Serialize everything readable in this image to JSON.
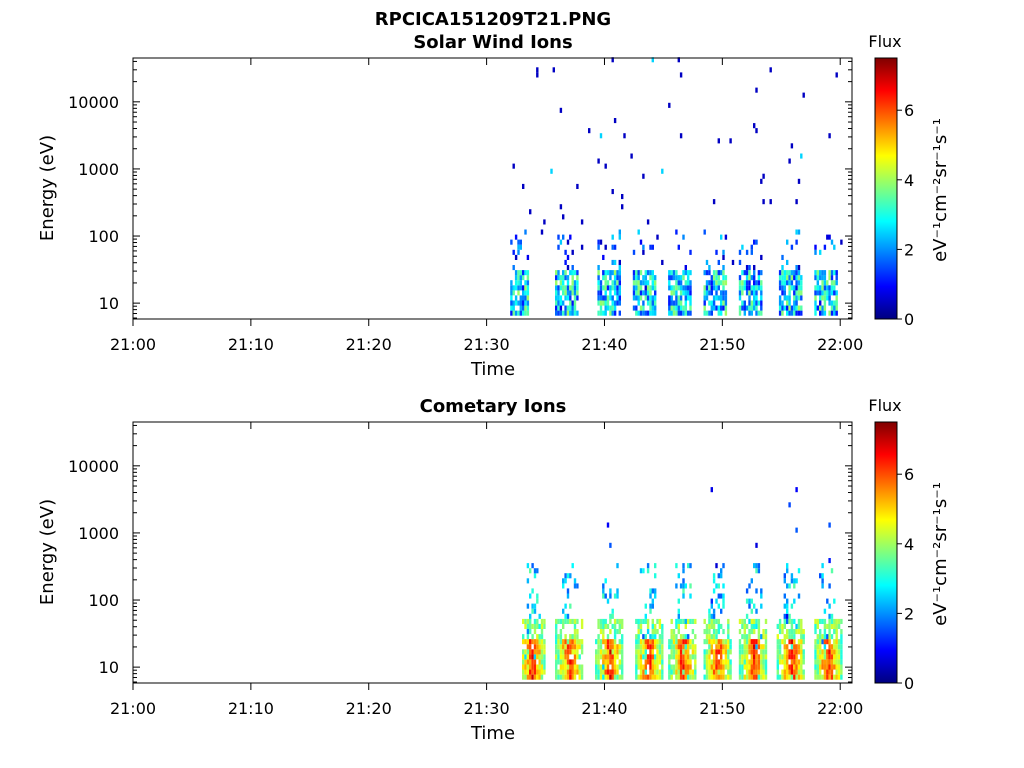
{
  "figure_title": "RPCICA151209T21.PNG",
  "colors": {
    "colormap": [
      "#00007f",
      "#0000ff",
      "#007fff",
      "#00ffff",
      "#7fff7f",
      "#ffff00",
      "#ff7f00",
      "#ff0000",
      "#7f0000"
    ]
  },
  "chart_data": [
    {
      "type": "heatmap",
      "title": "Solar Wind Ions",
      "xlabel": "Time",
      "ylabel": "Energy (eV)",
      "x_ticks": [
        "21:00",
        "21:10",
        "21:20",
        "21:30",
        "21:40",
        "21:50",
        "22:00"
      ],
      "x_range_minutes": [
        0,
        61
      ],
      "y_scale": "log",
      "y_range": [
        5.8,
        45000
      ],
      "y_ticks": [
        "10",
        "100",
        "1000",
        "10000"
      ],
      "colorbar": {
        "title": "Flux",
        "label": "eV⁻¹cm⁻²sr⁻¹s⁻¹",
        "ticks": [
          "0",
          "2",
          "4",
          "6"
        ],
        "range": [
          0,
          7.5
        ]
      },
      "grid": false,
      "data_start_minute": 32,
      "bursts_minutes": [
        32.5,
        36.8,
        40.3,
        43.4,
        46.3,
        49.3,
        52.3,
        55.7,
        58.7
      ],
      "description_points": [
        {
          "t": 32.5,
          "e": 10,
          "flux": 1.5
        },
        {
          "t": 36.8,
          "e": 10,
          "flux": 3.0
        },
        {
          "t": 40.3,
          "e": 10,
          "flux": 3.0
        },
        {
          "t": 43.4,
          "e": 12,
          "flux": 3.5
        },
        {
          "t": 46.3,
          "e": 10,
          "flux": 3.0
        },
        {
          "t": 49.3,
          "e": 10,
          "flux": 3.0
        },
        {
          "t": 52.3,
          "e": 10,
          "flux": 2.5
        },
        {
          "t": 55.7,
          "e": 10,
          "flux": 2.5
        },
        {
          "t": 58.7,
          "e": 10,
          "flux": 2.5
        }
      ]
    },
    {
      "type": "heatmap",
      "title": "Cometary Ions",
      "xlabel": "Time",
      "ylabel": "Energy (eV)",
      "x_ticks": [
        "21:00",
        "21:10",
        "21:20",
        "21:30",
        "21:40",
        "21:50",
        "22:00"
      ],
      "x_range_minutes": [
        0,
        61
      ],
      "y_scale": "log",
      "y_range": [
        5.8,
        45000
      ],
      "y_ticks": [
        "10",
        "100",
        "1000",
        "10000"
      ],
      "colorbar": {
        "title": "Flux",
        "label": "eV⁻¹cm⁻²sr⁻¹s⁻¹",
        "ticks": [
          "0",
          "2",
          "4",
          "6"
        ],
        "range": [
          0,
          7.5
        ]
      },
      "grid": false,
      "data_start_minute": 33,
      "bursts_minutes": [
        33.8,
        37.0,
        40.4,
        43.7,
        46.6,
        49.5,
        52.6,
        55.8,
        58.9
      ],
      "description_points": [
        {
          "t": 33.8,
          "e": 10,
          "flux": 5.5
        },
        {
          "t": 37.0,
          "e": 12,
          "flux": 6.0
        },
        {
          "t": 40.4,
          "e": 10,
          "flux": 6.0
        },
        {
          "t": 43.7,
          "e": 12,
          "flux": 6.5
        },
        {
          "t": 46.6,
          "e": 12,
          "flux": 6.5
        },
        {
          "t": 49.5,
          "e": 12,
          "flux": 6.5
        },
        {
          "t": 52.6,
          "e": 12,
          "flux": 6.5
        },
        {
          "t": 55.8,
          "e": 12,
          "flux": 6.0
        },
        {
          "t": 58.9,
          "e": 12,
          "flux": 6.0
        }
      ]
    }
  ]
}
